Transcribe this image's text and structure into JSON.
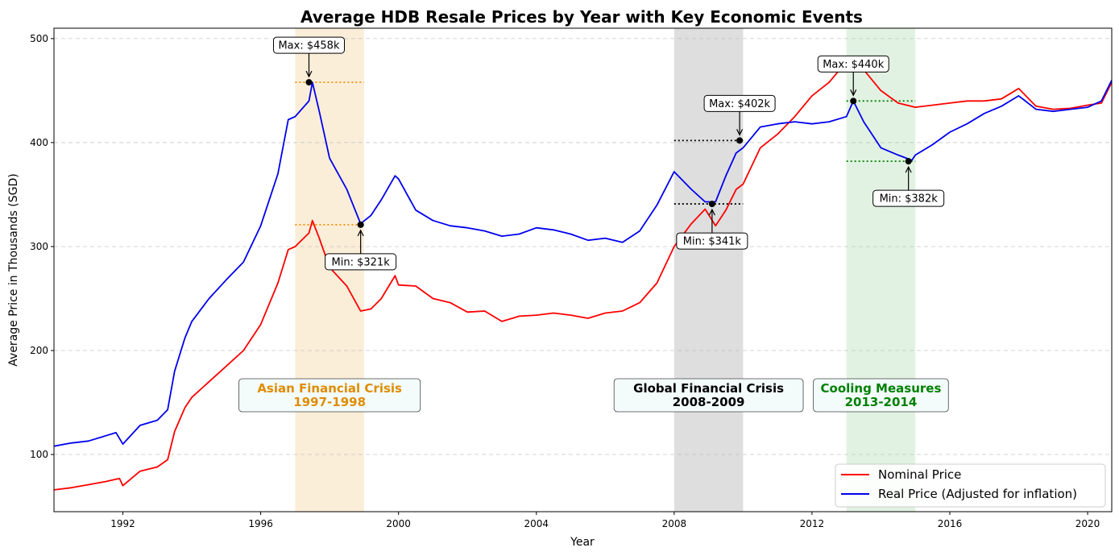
{
  "chart_data": {
    "type": "line",
    "title": "Average HDB Resale Prices by Year with Key Economic Events",
    "xlabel": "Year",
    "ylabel": "Average Price in Thousands (SGD)",
    "xlim": [
      1990.0,
      2020.7
    ],
    "ylim": [
      45,
      510
    ],
    "x_ticks": [
      1992,
      1996,
      2000,
      2004,
      2008,
      2012,
      2016,
      2020
    ],
    "y_ticks": [
      100,
      200,
      300,
      400,
      500
    ],
    "grid": "horizontal dashed",
    "legend_position": "bottom-right",
    "series": [
      {
        "name": "Nominal Price",
        "color": "#ff0000",
        "points": [
          [
            1990.0,
            66
          ],
          [
            1990.5,
            68
          ],
          [
            1991.0,
            71
          ],
          [
            1991.5,
            74
          ],
          [
            1991.9,
            77
          ],
          [
            1992.0,
            70
          ],
          [
            1992.5,
            84
          ],
          [
            1993.0,
            88
          ],
          [
            1993.3,
            95
          ],
          [
            1993.5,
            122
          ],
          [
            1993.8,
            145
          ],
          [
            1994.0,
            155
          ],
          [
            1994.5,
            170
          ],
          [
            1995.0,
            185
          ],
          [
            1995.5,
            200
          ],
          [
            1996.0,
            225
          ],
          [
            1996.5,
            265
          ],
          [
            1996.8,
            297
          ],
          [
            1997.0,
            300
          ],
          [
            1997.4,
            313
          ],
          [
            1997.5,
            325
          ],
          [
            1997.7,
            308
          ],
          [
            1998.0,
            280
          ],
          [
            1998.5,
            262
          ],
          [
            1998.9,
            238
          ],
          [
            1999.2,
            240
          ],
          [
            1999.5,
            250
          ],
          [
            1999.9,
            272
          ],
          [
            2000.0,
            263
          ],
          [
            2000.5,
            262
          ],
          [
            2001.0,
            250
          ],
          [
            2001.5,
            246
          ],
          [
            2002.0,
            237
          ],
          [
            2002.5,
            238
          ],
          [
            2003.0,
            228
          ],
          [
            2003.5,
            233
          ],
          [
            2004.0,
            234
          ],
          [
            2004.5,
            236
          ],
          [
            2005.0,
            234
          ],
          [
            2005.5,
            231
          ],
          [
            2006.0,
            236
          ],
          [
            2006.5,
            238
          ],
          [
            2007.0,
            246
          ],
          [
            2007.5,
            265
          ],
          [
            2008.0,
            300
          ],
          [
            2008.5,
            322
          ],
          [
            2008.9,
            336
          ],
          [
            2009.2,
            320
          ],
          [
            2009.5,
            335
          ],
          [
            2009.8,
            355
          ],
          [
            2010.0,
            360
          ],
          [
            2010.5,
            395
          ],
          [
            2011.0,
            408
          ],
          [
            2011.5,
            425
          ],
          [
            2012.0,
            445
          ],
          [
            2012.5,
            458
          ],
          [
            2013.0,
            478
          ],
          [
            2013.5,
            470
          ],
          [
            2014.0,
            450
          ],
          [
            2014.5,
            438
          ],
          [
            2015.0,
            434
          ],
          [
            2015.5,
            436
          ],
          [
            2016.0,
            438
          ],
          [
            2016.5,
            440
          ],
          [
            2017.0,
            440
          ],
          [
            2017.5,
            442
          ],
          [
            2018.0,
            452
          ],
          [
            2018.5,
            435
          ],
          [
            2019.0,
            432
          ],
          [
            2019.5,
            433
          ],
          [
            2020.0,
            436
          ],
          [
            2020.4,
            438
          ],
          [
            2020.7,
            458
          ]
        ]
      },
      {
        "name": "Real Price (Adjusted for inflation)",
        "color": "#0000ee",
        "points": [
          [
            1990.0,
            108
          ],
          [
            1990.5,
            111
          ],
          [
            1991.0,
            113
          ],
          [
            1991.5,
            118
          ],
          [
            1991.8,
            121
          ],
          [
            1992.0,
            110
          ],
          [
            1992.5,
            128
          ],
          [
            1993.0,
            133
          ],
          [
            1993.3,
            143
          ],
          [
            1993.5,
            180
          ],
          [
            1993.8,
            212
          ],
          [
            1994.0,
            228
          ],
          [
            1994.5,
            250
          ],
          [
            1995.0,
            268
          ],
          [
            1995.5,
            285
          ],
          [
            1996.0,
            320
          ],
          [
            1996.5,
            370
          ],
          [
            1996.8,
            422
          ],
          [
            1997.0,
            425
          ],
          [
            1997.4,
            440
          ],
          [
            1997.5,
            458
          ],
          [
            1997.7,
            430
          ],
          [
            1998.0,
            385
          ],
          [
            1998.5,
            355
          ],
          [
            1998.9,
            322
          ],
          [
            1999.2,
            330
          ],
          [
            1999.5,
            345
          ],
          [
            1999.9,
            368
          ],
          [
            2000.0,
            365
          ],
          [
            2000.5,
            335
          ],
          [
            2001.0,
            325
          ],
          [
            2001.5,
            320
          ],
          [
            2002.0,
            318
          ],
          [
            2002.5,
            315
          ],
          [
            2003.0,
            310
          ],
          [
            2003.5,
            312
          ],
          [
            2004.0,
            318
          ],
          [
            2004.5,
            316
          ],
          [
            2005.0,
            312
          ],
          [
            2005.5,
            306
          ],
          [
            2006.0,
            308
          ],
          [
            2006.5,
            304
          ],
          [
            2007.0,
            315
          ],
          [
            2007.5,
            340
          ],
          [
            2008.0,
            372
          ],
          [
            2008.5,
            355
          ],
          [
            2008.9,
            343
          ],
          [
            2009.2,
            343
          ],
          [
            2009.5,
            368
          ],
          [
            2009.8,
            390
          ],
          [
            2010.0,
            395
          ],
          [
            2010.5,
            415
          ],
          [
            2011.0,
            418
          ],
          [
            2011.5,
            420
          ],
          [
            2012.0,
            418
          ],
          [
            2012.5,
            420
          ],
          [
            2013.0,
            425
          ],
          [
            2013.2,
            440
          ],
          [
            2013.5,
            420
          ],
          [
            2014.0,
            395
          ],
          [
            2014.5,
            388
          ],
          [
            2014.9,
            383
          ],
          [
            2015.0,
            388
          ],
          [
            2015.5,
            398
          ],
          [
            2016.0,
            410
          ],
          [
            2016.5,
            418
          ],
          [
            2017.0,
            428
          ],
          [
            2017.5,
            435
          ],
          [
            2018.0,
            445
          ],
          [
            2018.5,
            432
          ],
          [
            2019.0,
            430
          ],
          [
            2019.5,
            432
          ],
          [
            2020.0,
            434
          ],
          [
            2020.4,
            440
          ],
          [
            2020.7,
            460
          ]
        ]
      }
    ],
    "events": [
      {
        "label": "Asian Financial Crisis",
        "years": "1997-1998",
        "start": 1997.0,
        "end": 1999.0,
        "band_color": "#f5deb3",
        "text_color": "#e08c00",
        "ref_color": "#ff8c00",
        "max": {
          "x": 1997.4,
          "y": 458,
          "label": "Max: $458k"
        },
        "min": {
          "x": 1998.9,
          "y": 321,
          "label": "Min: $321k"
        }
      },
      {
        "label": "Global Financial Crisis",
        "years": "2008-2009",
        "start": 2008.0,
        "end": 2010.0,
        "band_color": "#c8c8c8",
        "text_color": "#000000",
        "ref_color": "#000000",
        "max": {
          "x": 2009.9,
          "y": 402,
          "label": "Max: $402k"
        },
        "min": {
          "x": 2009.1,
          "y": 341,
          "label": "Min: $341k"
        }
      },
      {
        "label": "Cooling Measures",
        "years": "2013-2014",
        "start": 2013.0,
        "end": 2015.0,
        "band_color": "#c6e6c6",
        "text_color": "#008000",
        "ref_color": "#008000",
        "max": {
          "x": 2013.2,
          "y": 440,
          "label": "Max: $440k"
        },
        "min": {
          "x": 2014.8,
          "y": 382,
          "label": "Min: $382k"
        }
      }
    ]
  }
}
